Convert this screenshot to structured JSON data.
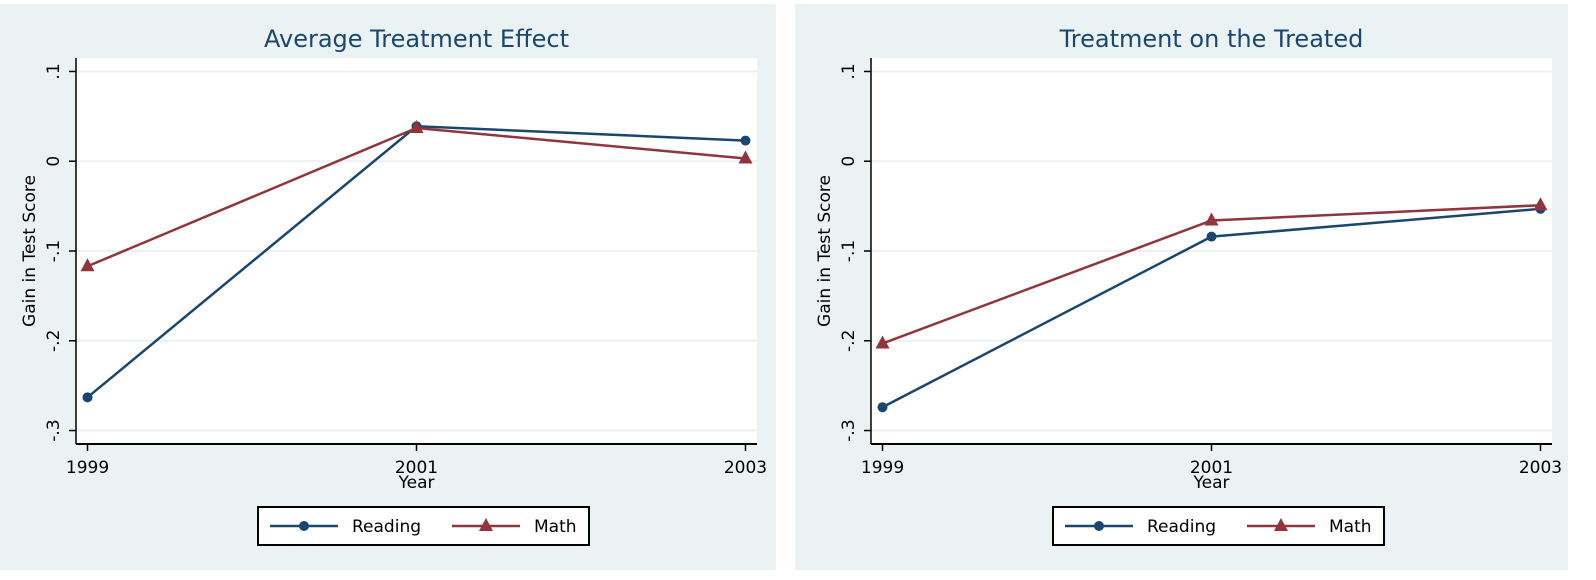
{
  "chart_data": [
    {
      "type": "line",
      "title": "Average Treatment Effect",
      "ylabel": "Gain in Test Score",
      "xlabel": "Year",
      "x": [
        1999,
        2001,
        2003
      ],
      "series": [
        {
          "name": "Reading",
          "color": "#1a476f",
          "marker": "circle",
          "values": [
            -0.263,
            0.039,
            0.023
          ]
        },
        {
          "name": "Math",
          "color": "#90353b",
          "marker": "triangle",
          "values": [
            -0.117,
            0.037,
            0.003
          ]
        }
      ],
      "xlim": [
        1998.93,
        2003.07
      ],
      "xticks": [
        1999,
        2001,
        2003
      ],
      "ylim": [
        -0.315,
        0.115
      ],
      "yticks": [
        {
          "value": 0.1,
          "label": ".1"
        },
        0,
        {
          "value": -0.1,
          "label": "-.1"
        },
        {
          "value": -0.2,
          "label": "-.2"
        },
        {
          "value": -0.3,
          "label": "-.3"
        }
      ],
      "grid": true,
      "legend": "bottom"
    },
    {
      "type": "line",
      "title": "Treatment on the Treated",
      "ylabel": "Gain in Test Score",
      "xlabel": "Year",
      "x": [
        1999,
        2001,
        2003
      ],
      "series": [
        {
          "name": "Reading",
          "color": "#1a476f",
          "marker": "circle",
          "values": [
            -0.274,
            -0.084,
            -0.053
          ]
        },
        {
          "name": "Math",
          "color": "#90353b",
          "marker": "triangle",
          "values": [
            -0.203,
            -0.066,
            -0.049
          ]
        }
      ],
      "xlim": [
        1998.93,
        2003.07
      ],
      "xticks": [
        1999,
        2001,
        2003
      ],
      "ylim": [
        -0.315,
        0.115
      ],
      "yticks": [
        {
          "value": 0.1,
          "label": ".1"
        },
        0,
        {
          "value": -0.1,
          "label": "-.1"
        },
        {
          "value": -0.2,
          "label": "-.2"
        },
        {
          "value": -0.3,
          "label": "-.3"
        }
      ],
      "grid": true,
      "legend": "bottom"
    }
  ]
}
